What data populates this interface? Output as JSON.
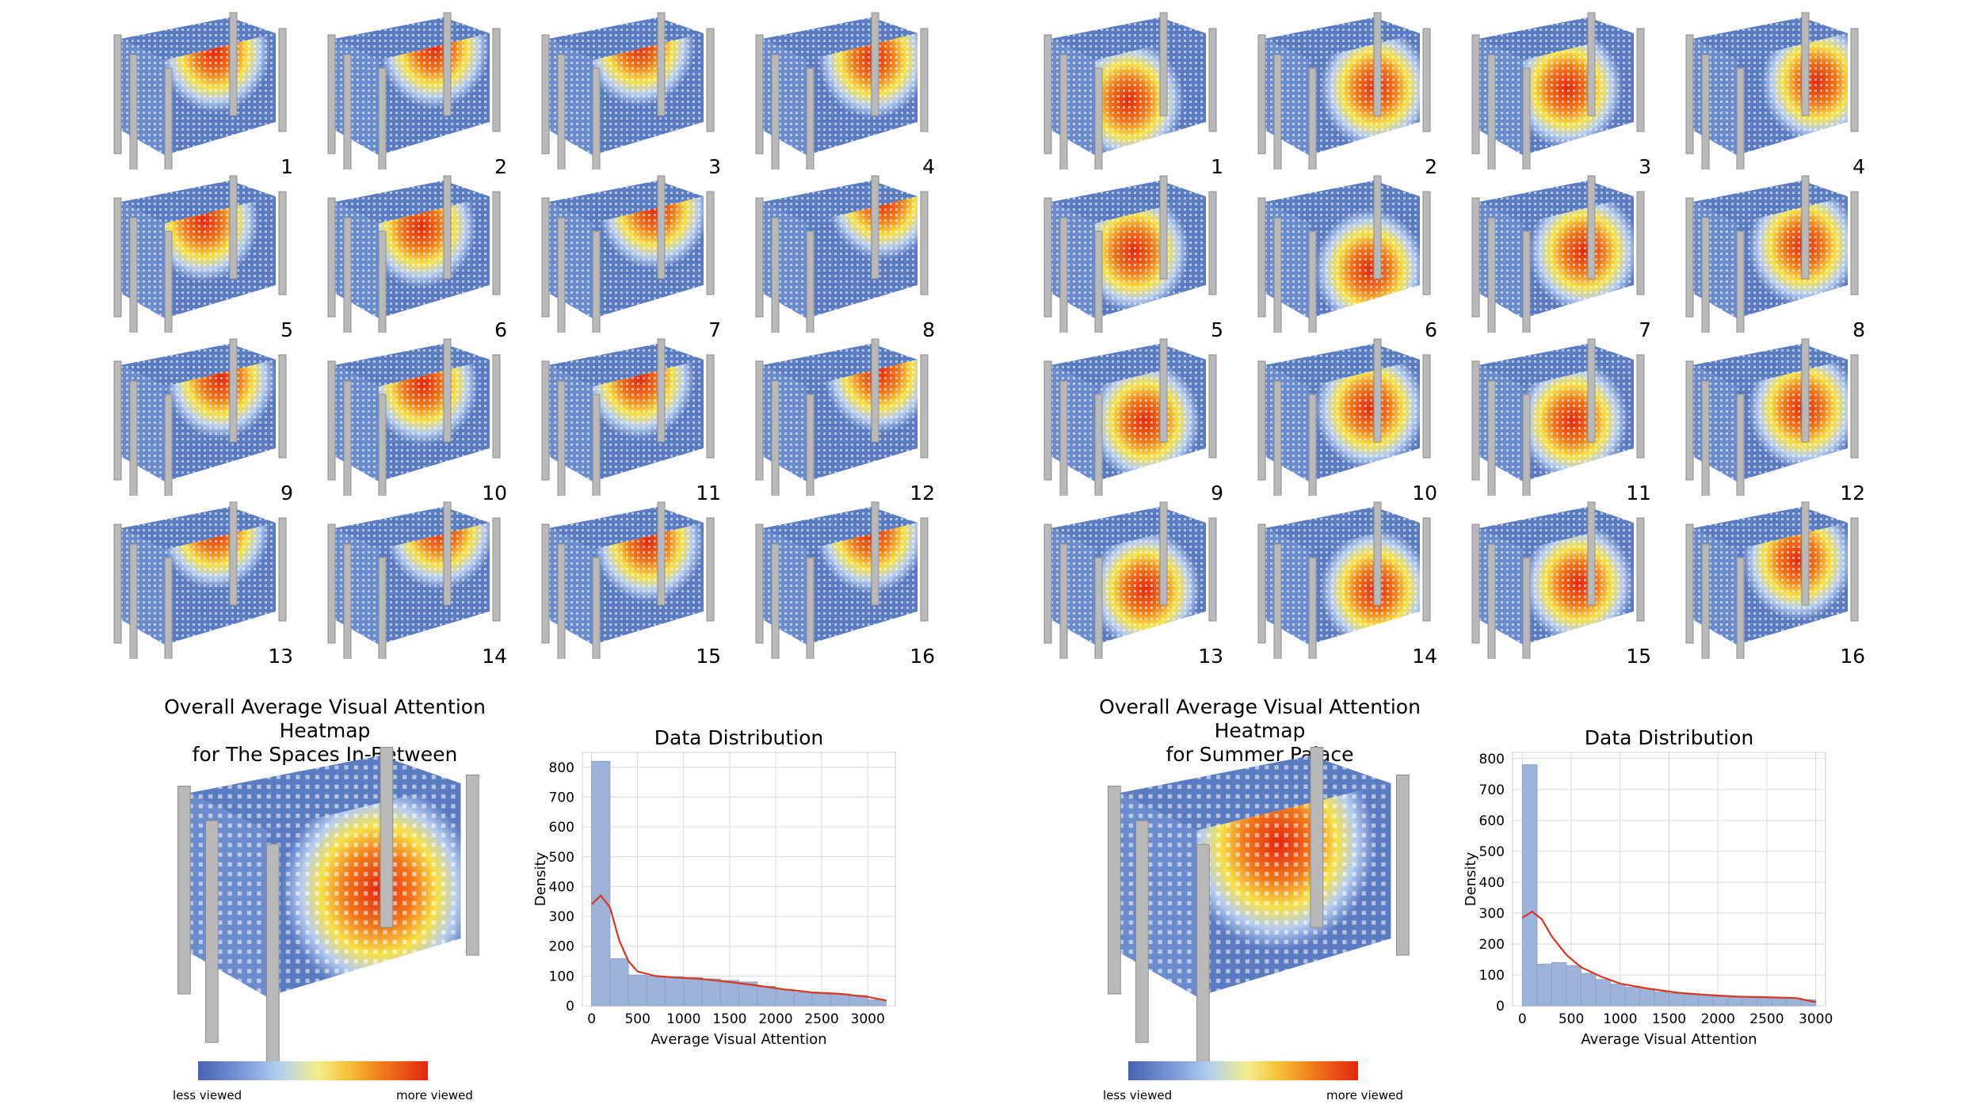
{
  "panels": [
    {
      "cell_numbers": [
        "1",
        "2",
        "3",
        "4",
        "5",
        "6",
        "7",
        "8",
        "9",
        "10",
        "11",
        "12",
        "13",
        "14",
        "15",
        "16"
      ],
      "heatmap_title_line1": "Overall Average Visual Attention Heatmap",
      "heatmap_title_line2": "for The Spaces In-Between",
      "colorbar": {
        "low_label": "less viewed",
        "high_label": "more viewed"
      }
    },
    {
      "cell_numbers": [
        "1",
        "2",
        "3",
        "4",
        "5",
        "6",
        "7",
        "8",
        "9",
        "10",
        "11",
        "12",
        "13",
        "14",
        "15",
        "16"
      ],
      "heatmap_title_line1": "Overall Average Visual Attention Heatmap",
      "heatmap_title_line2": "for Summer Palace",
      "colorbar": {
        "low_label": "less viewed",
        "high_label": "more viewed"
      }
    }
  ],
  "colors": {
    "hist_bar": "#9db3da",
    "kde_line": "#d9361f",
    "cube_base": "#5d7fc3",
    "hot": "#e8361a",
    "warm": "#f7e24a"
  },
  "chart_data": [
    {
      "type": "bar",
      "title": "Data Distribution",
      "xlabel": "Average Visual Attention",
      "ylabel": "Density",
      "xlim": [
        -100,
        3300
      ],
      "ylim": [
        0,
        850
      ],
      "xticks": [
        0,
        500,
        1000,
        1500,
        2000,
        2500,
        3000
      ],
      "yticks": [
        0,
        100,
        200,
        300,
        400,
        500,
        600,
        700,
        800
      ],
      "grid": true,
      "bin_width": 200,
      "bin_starts": [
        0,
        200,
        400,
        600,
        800,
        1000,
        1200,
        1400,
        1600,
        1800,
        2000,
        2200,
        2400,
        2600,
        2800,
        3000
      ],
      "values": [
        820,
        158,
        103,
        100,
        97,
        95,
        90,
        85,
        80,
        65,
        55,
        45,
        40,
        40,
        35,
        20
      ],
      "kde": {
        "x": [
          0,
          100,
          200,
          300,
          400,
          500,
          700,
          900,
          1200,
          1500,
          1800,
          2100,
          2400,
          2700,
          3000,
          3200
        ],
        "y": [
          340,
          370,
          330,
          220,
          150,
          115,
          100,
          95,
          90,
          80,
          68,
          55,
          45,
          40,
          30,
          18
        ]
      }
    },
    {
      "type": "bar",
      "title": "Data Distribution",
      "xlabel": "Average Visual Attention",
      "ylabel": "Density",
      "xlim": [
        -100,
        3100
      ],
      "ylim": [
        0,
        820
      ],
      "xticks": [
        0,
        500,
        1000,
        1500,
        2000,
        2500,
        3000
      ],
      "yticks": [
        0,
        100,
        200,
        300,
        400,
        500,
        600,
        700,
        800
      ],
      "grid": true,
      "bin_width": 150,
      "bin_starts": [
        0,
        150,
        300,
        450,
        600,
        750,
        900,
        1050,
        1200,
        1350,
        1500,
        1650,
        1800,
        1950,
        2100,
        2250,
        2400,
        2550,
        2700,
        2850
      ],
      "values": [
        780,
        135,
        140,
        130,
        105,
        85,
        70,
        60,
        55,
        45,
        40,
        36,
        33,
        30,
        28,
        27,
        27,
        27,
        25,
        20
      ],
      "kde": {
        "x": [
          0,
          100,
          200,
          300,
          450,
          600,
          800,
          1000,
          1300,
          1600,
          1900,
          2200,
          2500,
          2800,
          3000
        ],
        "y": [
          285,
          305,
          280,
          225,
          165,
          125,
          95,
          72,
          55,
          42,
          35,
          30,
          28,
          25,
          12
        ]
      }
    }
  ]
}
